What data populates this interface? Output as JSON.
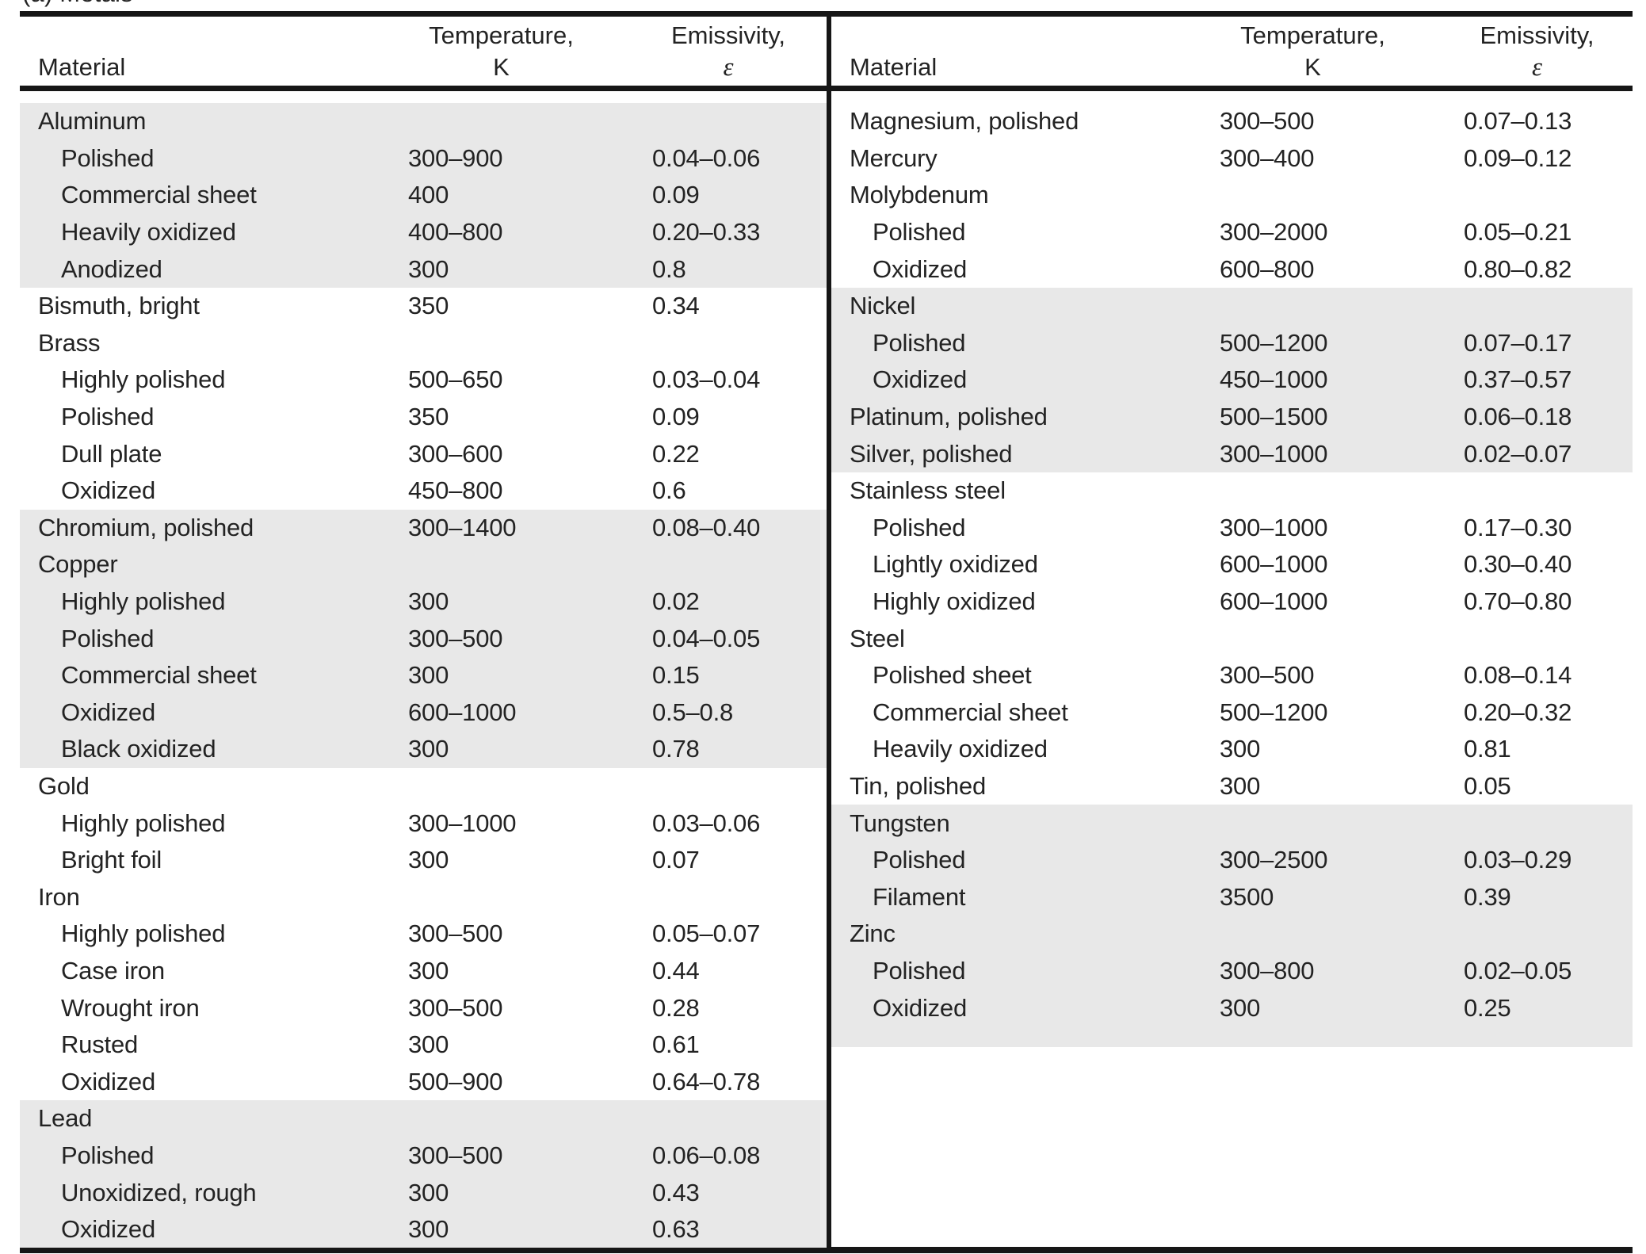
{
  "caption": "(a) Metals",
  "columns": {
    "material": "Material",
    "temperature_label": "Temperature,",
    "temperature_unit": "K",
    "emissivity_label": "Emissivity,",
    "emissivity_symbol": "ε"
  },
  "colors": {
    "shade": "#e8e8e8",
    "rule": "#161616",
    "text": "#232323"
  },
  "left_rows": [
    {
      "material": "Aluminum",
      "temp": "",
      "emis": "",
      "indent": 0,
      "shaded": true
    },
    {
      "material": "Polished",
      "temp": "300–900",
      "emis": "0.04–0.06",
      "indent": 1,
      "shaded": true
    },
    {
      "material": "Commercial sheet",
      "temp": "400",
      "emis": "0.09",
      "indent": 1,
      "shaded": true
    },
    {
      "material": "Heavily oxidized",
      "temp": "400–800",
      "emis": "0.20–0.33",
      "indent": 1,
      "shaded": true
    },
    {
      "material": "Anodized",
      "temp": "300",
      "emis": "0.8",
      "indent": 1,
      "shaded": true
    },
    {
      "material": "Bismuth, bright",
      "temp": "350",
      "emis": "0.34",
      "indent": 0,
      "shaded": false
    },
    {
      "material": "Brass",
      "temp": "",
      "emis": "",
      "indent": 0,
      "shaded": false
    },
    {
      "material": "Highly polished",
      "temp": "500–650",
      "emis": "0.03–0.04",
      "indent": 1,
      "shaded": false
    },
    {
      "material": "Polished",
      "temp": "350",
      "emis": "0.09",
      "indent": 1,
      "shaded": false
    },
    {
      "material": "Dull plate",
      "temp": "300–600",
      "emis": "0.22",
      "indent": 1,
      "shaded": false
    },
    {
      "material": "Oxidized",
      "temp": "450–800",
      "emis": "0.6",
      "indent": 1,
      "shaded": false
    },
    {
      "material": "Chromium, polished",
      "temp": "300–1400",
      "emis": "0.08–0.40",
      "indent": 0,
      "shaded": true
    },
    {
      "material": "Copper",
      "temp": "",
      "emis": "",
      "indent": 0,
      "shaded": true
    },
    {
      "material": "Highly polished",
      "temp": "300",
      "emis": "0.02",
      "indent": 1,
      "shaded": true
    },
    {
      "material": "Polished",
      "temp": "300–500",
      "emis": "0.04–0.05",
      "indent": 1,
      "shaded": true
    },
    {
      "material": "Commercial sheet",
      "temp": "300",
      "emis": "0.15",
      "indent": 1,
      "shaded": true
    },
    {
      "material": "Oxidized",
      "temp": "600–1000",
      "emis": "0.5–0.8",
      "indent": 1,
      "shaded": true
    },
    {
      "material": "Black oxidized",
      "temp": "300",
      "emis": "0.78",
      "indent": 1,
      "shaded": true
    },
    {
      "material": "Gold",
      "temp": "",
      "emis": "",
      "indent": 0,
      "shaded": false
    },
    {
      "material": "Highly polished",
      "temp": "300–1000",
      "emis": "0.03–0.06",
      "indent": 1,
      "shaded": false
    },
    {
      "material": "Bright foil",
      "temp": "300",
      "emis": "0.07",
      "indent": 1,
      "shaded": false
    },
    {
      "material": "Iron",
      "temp": "",
      "emis": "",
      "indent": 0,
      "shaded": false
    },
    {
      "material": "Highly polished",
      "temp": "300–500",
      "emis": "0.05–0.07",
      "indent": 1,
      "shaded": false
    },
    {
      "material": "Case iron",
      "temp": "300",
      "emis": "0.44",
      "indent": 1,
      "shaded": false
    },
    {
      "material": "Wrought iron",
      "temp": "300–500",
      "emis": "0.28",
      "indent": 1,
      "shaded": false
    },
    {
      "material": "Rusted",
      "temp": "300",
      "emis": "0.61",
      "indent": 1,
      "shaded": false
    },
    {
      "material": "Oxidized",
      "temp": "500–900",
      "emis": "0.64–0.78",
      "indent": 1,
      "shaded": false
    },
    {
      "material": "Lead",
      "temp": "",
      "emis": "",
      "indent": 0,
      "shaded": true
    },
    {
      "material": "Polished",
      "temp": "300–500",
      "emis": "0.06–0.08",
      "indent": 1,
      "shaded": true
    },
    {
      "material": "Unoxidized, rough",
      "temp": "300",
      "emis": "0.43",
      "indent": 1,
      "shaded": true
    },
    {
      "material": "Oxidized",
      "temp": "300",
      "emis": "0.63",
      "indent": 1,
      "shaded": true
    }
  ],
  "right_rows": [
    {
      "material": "Magnesium, polished",
      "temp": "300–500",
      "emis": "0.07–0.13",
      "indent": 0,
      "shaded": false
    },
    {
      "material": "Mercury",
      "temp": "300–400",
      "emis": "0.09–0.12",
      "indent": 0,
      "shaded": false
    },
    {
      "material": "Molybdenum",
      "temp": "",
      "emis": "",
      "indent": 0,
      "shaded": false
    },
    {
      "material": "Polished",
      "temp": "300–2000",
      "emis": "0.05–0.21",
      "indent": 1,
      "shaded": false
    },
    {
      "material": "Oxidized",
      "temp": "600–800",
      "emis": "0.80–0.82",
      "indent": 1,
      "shaded": false
    },
    {
      "material": "Nickel",
      "temp": "",
      "emis": "",
      "indent": 0,
      "shaded": true
    },
    {
      "material": "Polished",
      "temp": "500–1200",
      "emis": "0.07–0.17",
      "indent": 1,
      "shaded": true
    },
    {
      "material": "Oxidized",
      "temp": "450–1000",
      "emis": "0.37–0.57",
      "indent": 1,
      "shaded": true
    },
    {
      "material": "Platinum, polished",
      "temp": "500–1500",
      "emis": "0.06–0.18",
      "indent": 0,
      "shaded": true
    },
    {
      "material": "Silver, polished",
      "temp": "300–1000",
      "emis": "0.02–0.07",
      "indent": 0,
      "shaded": true
    },
    {
      "material": "Stainless steel",
      "temp": "",
      "emis": "",
      "indent": 0,
      "shaded": false
    },
    {
      "material": "Polished",
      "temp": "300–1000",
      "emis": "0.17–0.30",
      "indent": 1,
      "shaded": false
    },
    {
      "material": "Lightly oxidized",
      "temp": "600–1000",
      "emis": "0.30–0.40",
      "indent": 1,
      "shaded": false
    },
    {
      "material": "Highly oxidized",
      "temp": "600–1000",
      "emis": "0.70–0.80",
      "indent": 1,
      "shaded": false
    },
    {
      "material": "Steel",
      "temp": "",
      "emis": "",
      "indent": 0,
      "shaded": false
    },
    {
      "material": "Polished sheet",
      "temp": "300–500",
      "emis": "0.08–0.14",
      "indent": 1,
      "shaded": false
    },
    {
      "material": "Commercial sheet",
      "temp": "500–1200",
      "emis": "0.20–0.32",
      "indent": 1,
      "shaded": false
    },
    {
      "material": "Heavily oxidized",
      "temp": "300",
      "emis": "0.81",
      "indent": 1,
      "shaded": false
    },
    {
      "material": "Tin, polished",
      "temp": "300",
      "emis": "0.05",
      "indent": 0,
      "shaded": false
    },
    {
      "material": "Tungsten",
      "temp": "",
      "emis": "",
      "indent": 0,
      "shaded": true
    },
    {
      "material": "Polished",
      "temp": "300–2500",
      "emis": "0.03–0.29",
      "indent": 1,
      "shaded": true
    },
    {
      "material": "Filament",
      "temp": "3500",
      "emis": "0.39",
      "indent": 1,
      "shaded": true
    },
    {
      "material": "Zinc",
      "temp": "",
      "emis": "",
      "indent": 0,
      "shaded": true
    },
    {
      "material": "Polished",
      "temp": "300–800",
      "emis": "0.02–0.05",
      "indent": 1,
      "shaded": true
    },
    {
      "material": "Oxidized",
      "temp": "300",
      "emis": "0.25",
      "indent": 1,
      "shaded": true
    }
  ]
}
